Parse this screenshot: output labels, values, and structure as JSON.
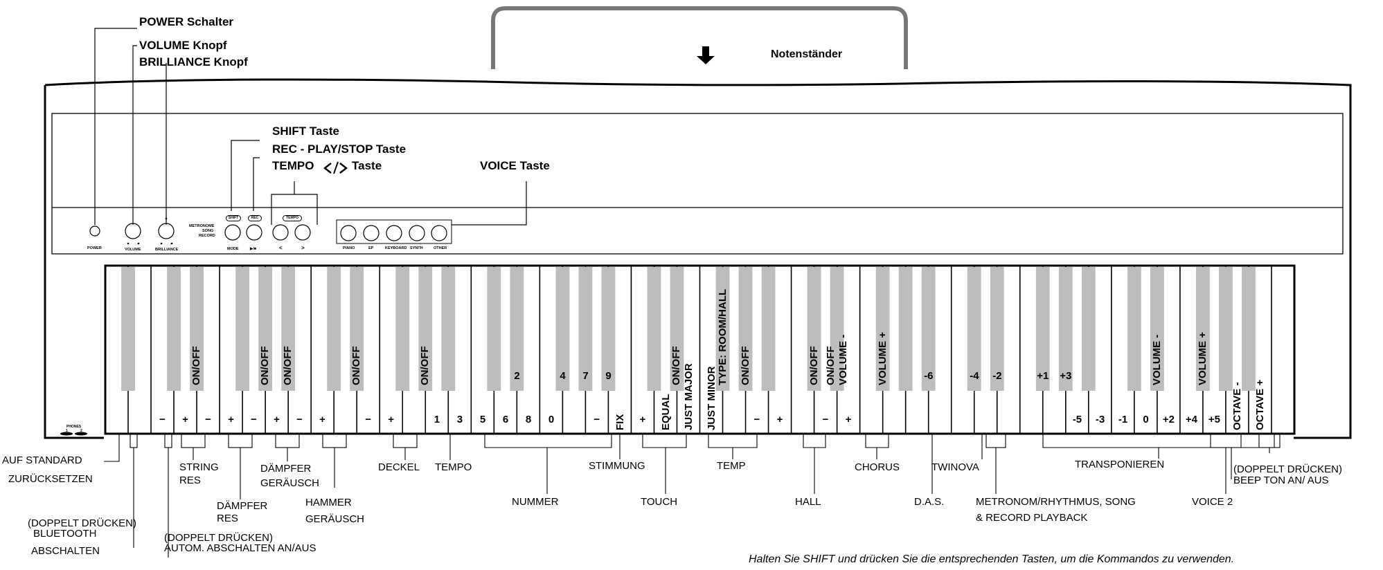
{
  "top_callouts": {
    "power": "POWER Schalter",
    "volume": "VOLUME Knopf",
    "brilliance": "BRILLIANCE Knopf",
    "music_stand": "Notenständer"
  },
  "panel_callouts": {
    "shift": "SHIFT Taste",
    "rec": "REC - PLAY/STOP Taste",
    "tempo": "TEMPO",
    "tempo_suffix": "Taste",
    "voice": "VOICE Taste"
  },
  "panel": {
    "power": "POWER",
    "volume": "VOLUME",
    "brilliance": "BRILLIANCE",
    "metronome": "METRONOME",
    "song": "SONG",
    "record": "RECORD",
    "shift_badge": "SHIFT",
    "rec_badge": "REC",
    "tempo_badge": "TEMPO",
    "mode": "MODE",
    "play_stop": "▶/■",
    "tempo_down": "<",
    "tempo_up": ">",
    "voices": [
      "PIANO",
      "EP",
      "KEYBOARD",
      "SYNTH",
      "OTHER"
    ],
    "phones": "PHONES",
    "phones_1": "1",
    "phones_2": "2"
  },
  "black_key_labels": [
    {
      "idx": 2,
      "text": "ON/OFF"
    },
    {
      "idx": 4,
      "text": "ON/OFF"
    },
    {
      "idx": 5,
      "text": "ON/OFF"
    },
    {
      "idx": 7,
      "text": "ON/OFF"
    },
    {
      "idx": 9,
      "text": "ON/OFF"
    },
    {
      "idx": 17,
      "text": "ON/OFF"
    },
    {
      "idx": 18,
      "text": "TYPE: ROOM/HALL"
    },
    {
      "idx": 19,
      "text": "ON/OFF"
    },
    {
      "idx": 21,
      "text": "ON/OFF"
    },
    {
      "idx": 22,
      "text": "ON/OFF"
    },
    {
      "idx": 22,
      "text": "VOLUME -"
    },
    {
      "idx": 23,
      "text": "VOLUME +"
    },
    {
      "idx": 32,
      "text": "VOLUME -"
    },
    {
      "idx": 33,
      "text": "VOLUME +"
    }
  ],
  "black_key_numbers": [
    {
      "idx": 12,
      "text": "2"
    },
    {
      "idx": 13,
      "text": "4"
    },
    {
      "idx": 14,
      "text": "7"
    },
    {
      "idx": 15,
      "text": "9"
    },
    {
      "idx": 25,
      "text": "-6"
    },
    {
      "idx": 26,
      "text": "-4"
    },
    {
      "idx": 27,
      "text": "-2"
    },
    {
      "idx": 28,
      "text": "+1"
    },
    {
      "idx": 29,
      "text": "+3"
    }
  ],
  "white_key_labels": [
    {
      "idx": 2,
      "text": "−"
    },
    {
      "idx": 3,
      "text": "+"
    },
    {
      "idx": 4,
      "text": "−"
    },
    {
      "idx": 5,
      "text": "+"
    },
    {
      "idx": 6,
      "text": "−"
    },
    {
      "idx": 7,
      "text": "+"
    },
    {
      "idx": 8,
      "text": "−"
    },
    {
      "idx": 9,
      "text": "+"
    },
    {
      "idx": 11,
      "text": "−"
    },
    {
      "idx": 12,
      "text": "+"
    },
    {
      "idx": 14,
      "text": "1"
    },
    {
      "idx": 15,
      "text": "3"
    },
    {
      "idx": 16,
      "text": "5"
    },
    {
      "idx": 17,
      "text": "6"
    },
    {
      "idx": 18,
      "text": "8"
    },
    {
      "idx": 19,
      "text": "0"
    },
    {
      "idx": 21,
      "text": "−"
    },
    {
      "idx": 23,
      "text": "+"
    },
    {
      "idx": 28,
      "text": "−"
    },
    {
      "idx": 29,
      "text": "+"
    },
    {
      "idx": 31,
      "text": "−"
    },
    {
      "idx": 32,
      "text": "+"
    },
    {
      "idx": 42,
      "text": "-5"
    },
    {
      "idx": 43,
      "text": "-3"
    },
    {
      "idx": 44,
      "text": "-1"
    },
    {
      "idx": 45,
      "text": "0"
    },
    {
      "idx": 46,
      "text": "+2"
    },
    {
      "idx": 47,
      "text": "+4"
    },
    {
      "idx": 48,
      "text": "+5"
    }
  ],
  "white_key_vertical": [
    {
      "idx": 22,
      "text": "FIX"
    },
    {
      "idx": 24,
      "text": "EQUAL"
    },
    {
      "idx": 25,
      "text": "JUST MAJOR"
    },
    {
      "idx": 26,
      "text": "JUST MINOR"
    },
    {
      "idx": 49,
      "text": "OCTAVE -"
    },
    {
      "idx": 50,
      "text": "OCTAVE +"
    }
  ],
  "bottom_labels": {
    "auf_standard": "AUF STANDARD",
    "zuruecksetzen": "ZURÜCKSETZEN",
    "bt_1": "(DOPPELT DRÜCKEN)",
    "bt_2": "BLUETOOTH",
    "bt_3": "ABSCHALTEN",
    "auto_1": "(DOPPELT DRÜCKEN)",
    "auto_2": "AUTOM. ABSCHALTEN AN/AUS",
    "string_res_1": "STRING",
    "string_res_2": "RES",
    "daempfer_res_1": "DÄMPFER",
    "daempfer_res_2": "RES",
    "daempfer_ger_1": "DÄMPFER",
    "daempfer_ger_2": "GERÄUSCH",
    "hammer_1": "HAMMER",
    "hammer_2": "GERÄUSCH",
    "deckel": "DECKEL",
    "tempo": "TEMPO",
    "nummer": "NUMMER",
    "stimmung": "STIMMUNG",
    "touch": "TOUCH",
    "temp": "TEMP",
    "hall": "HALL",
    "chorus": "CHORUS",
    "das": "D.A.S.",
    "twinova": "TWINOVA",
    "metronom_1": "METRONOM/RHYTHMUS, SONG",
    "metronom_2": "& RECORD PLAYBACK",
    "transponieren": "TRANSPONIEREN",
    "voice2": "VOICE 2",
    "beep_1": "(DOPPELT DRÜCKEN)",
    "beep_2": "BEEP TON AN/ AUS"
  },
  "footnote": "Halten Sie SHIFT und drücken Sie die entsprechenden Tasten, um die Kommandos zu verwenden.",
  "colors": {
    "black_key": "#bdbdbd",
    "line": "#000000",
    "background": "#ffffff"
  }
}
